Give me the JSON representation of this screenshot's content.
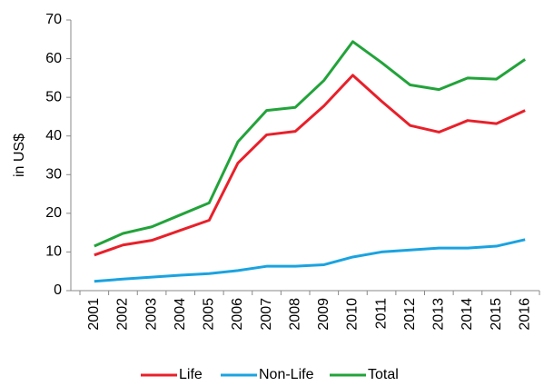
{
  "chart_data": {
    "type": "line",
    "y_label": "in US$",
    "categories": [
      "2001",
      "2002",
      "2003",
      "2004",
      "2005",
      "2006",
      "2007",
      "2008",
      "2009",
      "2010",
      "2011",
      "2012",
      "2013",
      "2014",
      "2015",
      "2016"
    ],
    "series": [
      {
        "name": "Life",
        "color": "#e8202a",
        "values": [
          9.2,
          11.8,
          13,
          15.6,
          18.2,
          33,
          40.3,
          41.2,
          47.8,
          55.7,
          49,
          42.7,
          41,
          44,
          43.2,
          46.6
        ]
      },
      {
        "name": "Non-Life",
        "color": "#1aa3e0",
        "values": [
          2.4,
          3,
          3.5,
          4,
          4.4,
          5.2,
          6.3,
          6.3,
          6.7,
          8.7,
          10,
          10.5,
          11,
          11,
          11.5,
          13.2
        ]
      },
      {
        "name": "Total",
        "color": "#22a33a",
        "values": [
          11.5,
          14.8,
          16.5,
          19.6,
          22.7,
          38.5,
          46.6,
          47.4,
          54.4,
          64.4,
          59,
          53.2,
          52,
          55,
          54.7,
          59.8
        ]
      }
    ],
    "ylim": [
      0,
      70
    ],
    "yticks": [
      0,
      10,
      20,
      30,
      40,
      50,
      60,
      70
    ],
    "legend": "bottom"
  }
}
